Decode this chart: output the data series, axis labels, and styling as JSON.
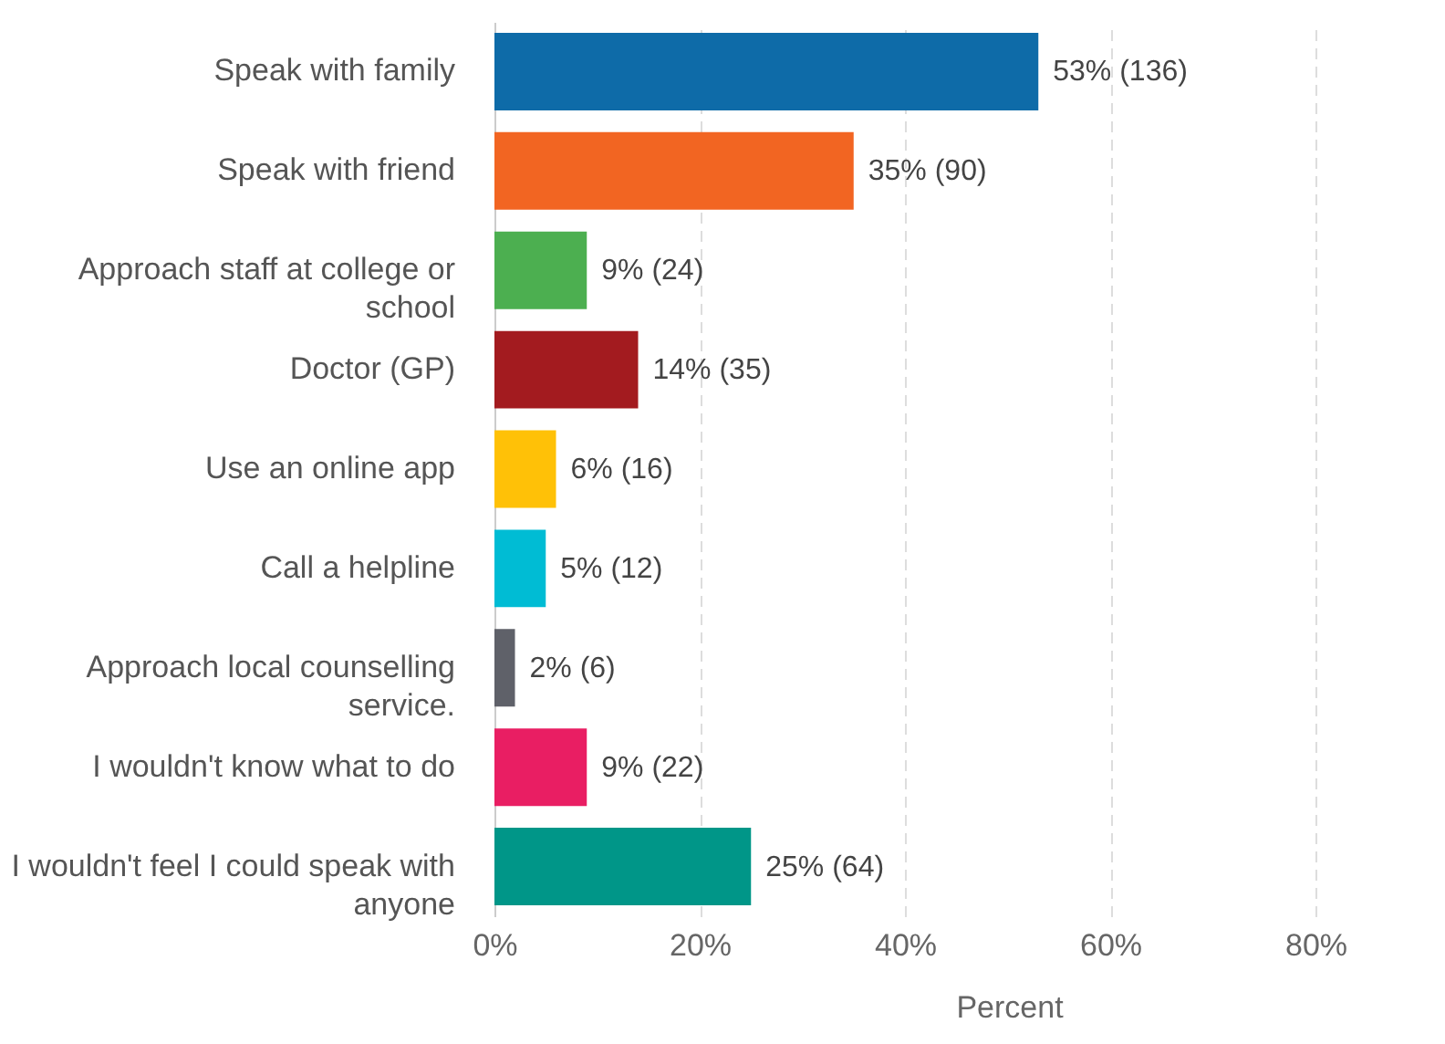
{
  "chart_data": {
    "type": "bar",
    "orientation": "horizontal",
    "xlabel": "Percent",
    "categories": [
      "Speak with family",
      "Speak with friend",
      "Approach staff at college or school",
      "Doctor (GP)",
      "Use an online app",
      "Call a helpline",
      "Approach local counselling service.",
      "I wouldn't know what to do",
      "I wouldn't feel I could speak with anyone"
    ],
    "values": [
      53,
      35,
      9,
      14,
      6,
      5,
      2,
      9,
      25
    ],
    "colors": [
      "#0e6ba8",
      "#f26522",
      "#4caf50",
      "#a31b1f",
      "#ffc107",
      "#00bcd4",
      "#5f6169",
      "#e91e63",
      "#009688"
    ],
    "value_labels": [
      "53% (136)",
      "35% (90)",
      "9% (24)",
      "14% (35)",
      "6% (16)",
      "5% (12)",
      "2% (6)",
      "9% (22)",
      "25% (64)"
    ],
    "xlim": [
      0,
      80
    ],
    "xticks": [
      {
        "value": 0,
        "label": "0%"
      },
      {
        "value": 20,
        "label": "20%"
      },
      {
        "value": 40,
        "label": "40%"
      },
      {
        "value": 60,
        "label": "60%"
      },
      {
        "value": 80,
        "label": "80%"
      }
    ],
    "grid": "x"
  }
}
